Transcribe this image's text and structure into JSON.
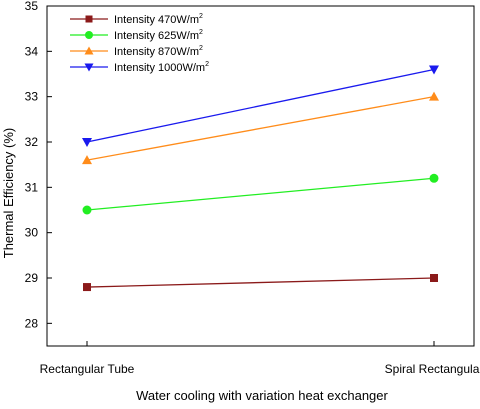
{
  "chart_data": {
    "type": "line",
    "categories": [
      "Rectangular Tube",
      "Spiral Rectangular"
    ],
    "xlabel": "Water cooling with variation heat exchanger",
    "ylabel": "Thermal Efficiency (%)",
    "ylim": [
      27.5,
      35
    ],
    "yticks": [
      28,
      29,
      30,
      31,
      32,
      33,
      34,
      35
    ],
    "grid": false,
    "legend_position": "top-left",
    "series": [
      {
        "name": "Intensity 470W/m",
        "sup": "2",
        "color": "#8b1a1a",
        "marker": "square",
        "values": [
          28.8,
          29.0
        ]
      },
      {
        "name": "Intensity 625W/m",
        "sup": "2",
        "color": "#22ee22",
        "marker": "circle",
        "values": [
          30.5,
          31.2
        ]
      },
      {
        "name": "Intensity 870W/m",
        "sup": "2",
        "color": "#ff8c1a",
        "marker": "triangle-up",
        "values": [
          31.6,
          33.0
        ]
      },
      {
        "name": "Intensity 1000W/m",
        "sup": "2",
        "color": "#1a1aee",
        "marker": "triangle-down",
        "values": [
          32.0,
          33.6
        ]
      }
    ]
  }
}
